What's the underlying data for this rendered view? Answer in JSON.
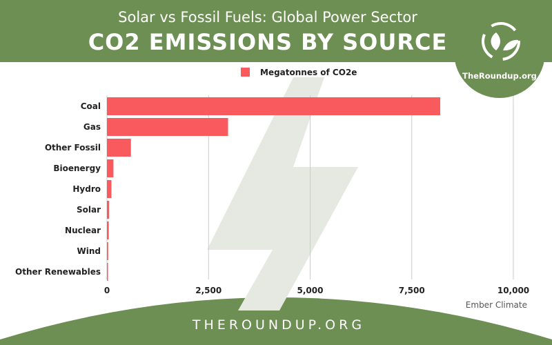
{
  "header": {
    "subtitle": "Solar vs Fossil Fuels: Global Power Sector",
    "title": "CO2 EMISSIONS BY SOURCE"
  },
  "brand": {
    "name": "TheRoundup.org",
    "icon": "recycle-leaf-icon"
  },
  "footer": {
    "text": "THEROUNDUP.ORG"
  },
  "source": "Ember Climate",
  "colors": {
    "green": "#6d8f53",
    "bar": "#f85a5d",
    "watermark": "#e5e9e1",
    "grid": "#cccccc"
  },
  "chart_data": {
    "type": "bar",
    "orientation": "horizontal",
    "categories": [
      "Coal",
      "Gas",
      "Other Fossil",
      "Bioenergy",
      "Hydro",
      "Solar",
      "Nuclear",
      "Wind",
      "Other Renewables"
    ],
    "series": [
      {
        "name": "Megatonnes of CO2e",
        "values": [
          8200,
          2980,
          590,
          160,
          110,
          55,
          45,
          30,
          5
        ]
      }
    ],
    "xlim": [
      0,
      10000
    ],
    "xticks": [
      "0",
      "2,500",
      "5,000",
      "7,500",
      "10,000"
    ],
    "grid": true,
    "legend": "top"
  }
}
